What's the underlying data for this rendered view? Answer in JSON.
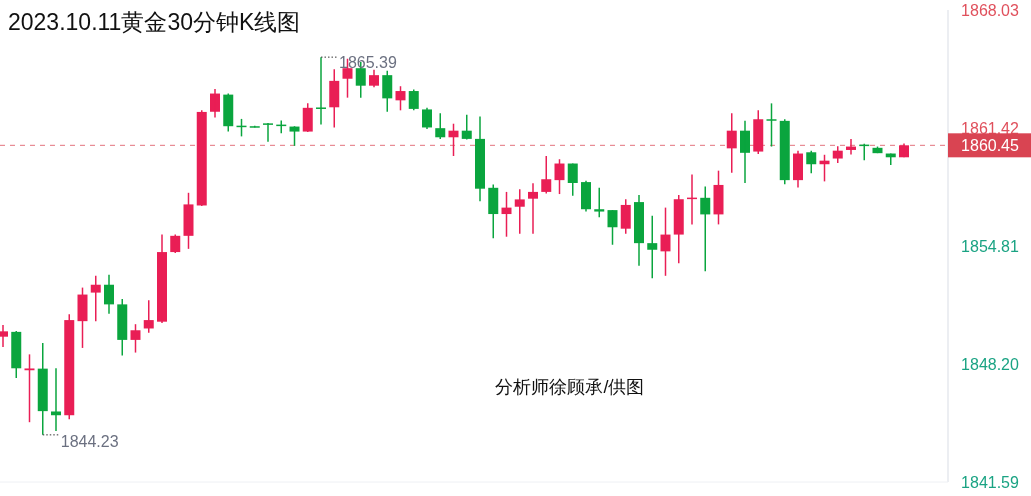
{
  "chart_data": {
    "type": "candlestick",
    "title": "2023.10.11黄金30分钟K线图",
    "categories": [
      null,
      null,
      null,
      null,
      null,
      null,
      null,
      null,
      null,
      null,
      null,
      null,
      null,
      null,
      null,
      null,
      null,
      null,
      null,
      null,
      null,
      null,
      null,
      null,
      null,
      null,
      null,
      null,
      null,
      null,
      null,
      null,
      null,
      null,
      null,
      null,
      null,
      null,
      null,
      null,
      null,
      null,
      null,
      null,
      null,
      null,
      null,
      null,
      null,
      null,
      null,
      null,
      null,
      null,
      null,
      null,
      null,
      null,
      null,
      null,
      null,
      null,
      null,
      null,
      null,
      null,
      null,
      null,
      null
    ],
    "ohlc": [
      [
        1849.73,
        1850.39,
        1849.15,
        1850.03
      ],
      [
        1850.0,
        1850.05,
        1847.41,
        1847.96
      ],
      [
        1847.85,
        1848.74,
        1844.94,
        1847.95
      ],
      [
        1847.94,
        1849.38,
        1844.23,
        1845.56
      ],
      [
        1845.54,
        1847.96,
        1844.44,
        1845.33
      ],
      [
        1845.33,
        1850.98,
        1845.1,
        1850.66
      ],
      [
        1850.6,
        1852.48,
        1849.1,
        1852.09
      ],
      [
        1852.2,
        1853.14,
        1850.6,
        1852.64
      ],
      [
        1852.64,
        1853.2,
        1851.01,
        1851.54
      ],
      [
        1851.54,
        1851.84,
        1848.67,
        1849.55
      ],
      [
        1849.55,
        1850.43,
        1848.84,
        1850.09
      ],
      [
        1850.19,
        1851.77,
        1849.95,
        1850.66
      ],
      [
        1850.57,
        1855.45,
        1850.5,
        1854.47
      ],
      [
        1854.47,
        1855.45,
        1854.42,
        1855.38
      ],
      [
        1855.38,
        1857.79,
        1854.65,
        1857.14
      ],
      [
        1857.08,
        1862.41,
        1857.05,
        1862.32
      ],
      [
        1862.33,
        1863.6,
        1862.01,
        1863.35
      ],
      [
        1863.29,
        1863.35,
        1861.22,
        1861.52
      ],
      [
        1861.55,
        1861.93,
        1860.95,
        1861.5
      ],
      [
        1861.52,
        1861.55,
        1861.45,
        1861.48
      ],
      [
        1861.68,
        1861.7,
        1860.65,
        1861.64
      ],
      [
        1861.61,
        1861.84,
        1861.13,
        1861.57
      ],
      [
        1861.5,
        1861.52,
        1860.42,
        1861.22
      ],
      [
        1861.22,
        1862.8,
        1861.2,
        1862.55
      ],
      [
        1862.57,
        1865.39,
        1861.61,
        1862.5
      ],
      [
        1862.58,
        1864.71,
        1861.45,
        1864.06
      ],
      [
        1864.18,
        1865.3,
        1863.12,
        1864.77
      ],
      [
        1864.77,
        1865.12,
        1863.12,
        1863.79
      ],
      [
        1863.79,
        1864.68,
        1863.7,
        1864.38
      ],
      [
        1864.38,
        1864.62,
        1862.33,
        1863.08
      ],
      [
        1862.97,
        1863.76,
        1862.41,
        1863.49
      ],
      [
        1863.49,
        1863.58,
        1862.41,
        1862.49
      ],
      [
        1862.46,
        1862.55,
        1861.36,
        1861.45
      ],
      [
        1861.41,
        1862.25,
        1860.81,
        1860.9
      ],
      [
        1860.9,
        1861.66,
        1859.85,
        1861.27
      ],
      [
        1861.27,
        1862.16,
        1860.77,
        1860.81
      ],
      [
        1860.81,
        1862.07,
        1857.31,
        1858.02
      ],
      [
        1858.07,
        1858.25,
        1855.24,
        1856.6
      ],
      [
        1856.6,
        1857.84,
        1855.33,
        1856.96
      ],
      [
        1857.01,
        1857.99,
        1855.49,
        1857.42
      ],
      [
        1857.46,
        1858.32,
        1855.49,
        1857.84
      ],
      [
        1857.84,
        1859.85,
        1857.75,
        1858.55
      ],
      [
        1858.5,
        1859.67,
        1857.72,
        1859.43
      ],
      [
        1859.43,
        1859.43,
        1857.62,
        1858.34
      ],
      [
        1858.39,
        1858.47,
        1856.74,
        1856.87
      ],
      [
        1856.87,
        1858.07,
        1856.42,
        1856.74
      ],
      [
        1856.82,
        1856.82,
        1854.88,
        1855.86
      ],
      [
        1855.78,
        1857.43,
        1855.49,
        1857.11
      ],
      [
        1857.27,
        1857.67,
        1853.71,
        1854.97
      ],
      [
        1854.97,
        1856.5,
        1853.0,
        1854.6
      ],
      [
        1854.51,
        1856.96,
        1853.14,
        1855.45
      ],
      [
        1855.45,
        1857.67,
        1853.85,
        1857.43
      ],
      [
        1857.47,
        1858.82,
        1856.02,
        1857.52
      ],
      [
        1857.51,
        1858.15,
        1853.39,
        1856.58
      ],
      [
        1856.58,
        1859.03,
        1856.02,
        1858.23
      ],
      [
        1860.28,
        1862.25,
        1858.91,
        1861.27
      ],
      [
        1861.27,
        1861.82,
        1858.34,
        1860.03
      ],
      [
        1860.1,
        1862.41,
        1859.96,
        1861.91
      ],
      [
        1861.91,
        1862.8,
        1860.38,
        1861.86
      ],
      [
        1861.82,
        1861.91,
        1858.27,
        1858.5
      ],
      [
        1858.5,
        1860.15,
        1858.09,
        1859.99
      ],
      [
        1860.06,
        1860.15,
        1858.89,
        1859.39
      ],
      [
        1859.39,
        1859.92,
        1858.43,
        1859.59
      ],
      [
        1859.71,
        1860.4,
        1859.46,
        1860.15
      ],
      [
        1860.19,
        1860.81,
        1859.94,
        1860.38
      ],
      [
        1860.49,
        1860.54,
        1859.62,
        1860.45
      ],
      [
        1860.31,
        1860.38,
        1860.01,
        1860.01
      ],
      [
        1859.99,
        1859.99,
        1859.35,
        1859.78
      ],
      [
        1859.78,
        1860.55,
        1859.78,
        1860.45
      ]
    ],
    "colors": [
      "#e91e55",
      "#0aa53e",
      "#e91e55",
      "#0aa53e",
      "#0aa53e",
      "#e91e55",
      "#e91e55",
      "#e91e55",
      "#0aa53e",
      "#0aa53e",
      "#e91e55",
      "#e91e55",
      "#e91e55",
      "#e91e55",
      "#e91e55",
      "#e91e55",
      "#e91e55",
      "#0aa53e",
      "#0aa53e",
      "#0aa53e",
      "#0aa53e",
      "#0aa53e",
      "#0aa53e",
      "#e91e55",
      "#0aa53e",
      "#e91e55",
      "#e91e55",
      "#0aa53e",
      "#e91e55",
      "#0aa53e",
      "#e91e55",
      "#0aa53e",
      "#0aa53e",
      "#0aa53e",
      "#e91e55",
      "#0aa53e",
      "#0aa53e",
      "#0aa53e",
      "#e91e55",
      "#e91e55",
      "#e91e55",
      "#e91e55",
      "#e91e55",
      "#0aa53e",
      "#0aa53e",
      "#0aa53e",
      "#0aa53e",
      "#e91e55",
      "#0aa53e",
      "#0aa53e",
      "#e91e55",
      "#e91e55",
      "#e91e55",
      "#0aa53e",
      "#e91e55",
      "#e91e55",
      "#0aa53e",
      "#e91e55",
      "#0aa53e",
      "#0aa53e",
      "#e91e55",
      "#0aa53e",
      "#e91e55",
      "#e91e55",
      "#e91e55",
      "#0aa53e",
      "#0aa53e",
      "#0aa53e",
      "#e91e55"
    ],
    "ylim": [
      1841.59,
      1868.03
    ],
    "yticks": [
      1841.59,
      {
        "value": 1848.2,
        "label": "1848.20"
      },
      1854.81,
      1861.42,
      1868.03
    ],
    "ref_lines": [
      {
        "axis": "y",
        "value": 1860.45,
        "label": "1860.45",
        "color": "#d94452",
        "line_style": "dashed"
      }
    ],
    "annotations": [
      "1865.39",
      "1844.23",
      "分析师徐顾承/供图"
    ]
  }
}
